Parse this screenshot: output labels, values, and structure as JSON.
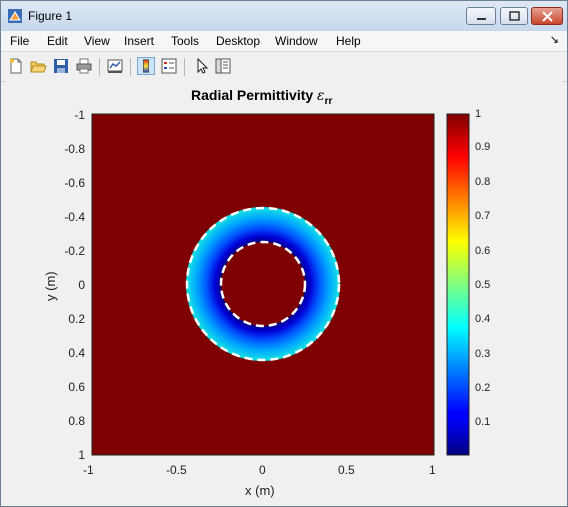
{
  "window": {
    "title": "Figure 1"
  },
  "menu": [
    "File",
    "Edit",
    "View",
    "Insert",
    "Tools",
    "Desktop",
    "Window",
    "Help"
  ],
  "toolbar_icons": [
    "new-figure-icon",
    "open-file-icon",
    "save-icon",
    "print-icon",
    "link-plot-icon",
    "colorbar-icon",
    "legend-icon",
    "edit-plot-pointer-icon",
    "property-inspector-icon"
  ],
  "plot": {
    "title_text": "Radial Permittivity ",
    "title_symbol": "ε",
    "title_subscript": "rr",
    "xlabel": "x (m)",
    "ylabel": "y (m)",
    "xticks": [
      "-1",
      "-0.5",
      "0",
      "0.5",
      "1"
    ],
    "yticks": [
      "-1",
      "-0.8",
      "-0.6",
      "-0.4",
      "-0.2",
      "0",
      "0.2",
      "0.4",
      "0.6",
      "0.8",
      "1"
    ],
    "colorbar_ticks": [
      "1",
      "0.9",
      "0.8",
      "0.7",
      "0.6",
      "0.5",
      "0.4",
      "0.3",
      "0.2",
      "0.1"
    ]
  },
  "chart_data": {
    "type": "heatmap",
    "title": "Radial Permittivity εrr",
    "xlabel": "x (m)",
    "ylabel": "y (m)",
    "xlim": [
      -1,
      1
    ],
    "ylim": [
      -1,
      1
    ],
    "y_direction": "reversed",
    "clim": [
      0,
      1
    ],
    "colormap": "jet",
    "background_value": 1,
    "annulus": {
      "inner_radius": 0.25,
      "outer_radius": 0.45,
      "value_at_inner": 0.0,
      "value_at_outer": 0.42
    },
    "boundary_circles": [
      0.25,
      0.45
    ],
    "colorbar": true
  }
}
